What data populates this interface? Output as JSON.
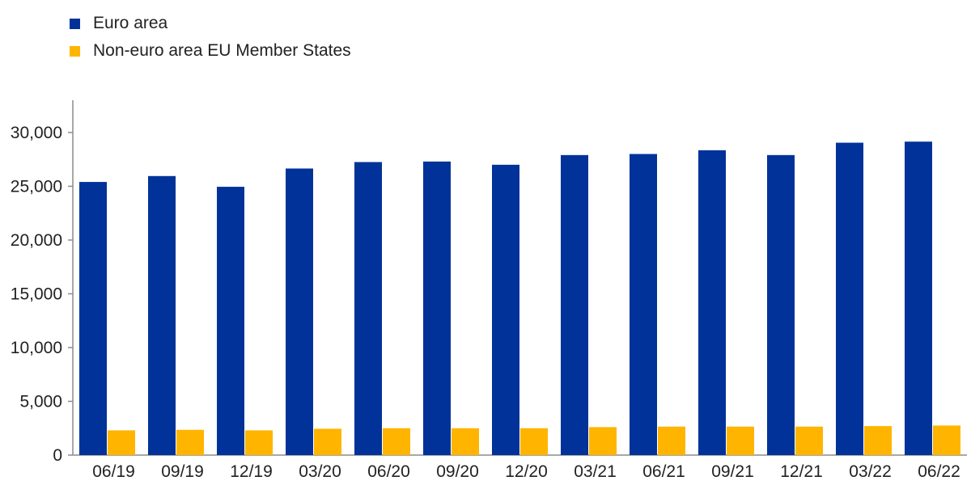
{
  "chart_data": {
    "type": "bar",
    "categories": [
      "06/19",
      "09/19",
      "12/19",
      "03/20",
      "06/20",
      "09/20",
      "12/20",
      "03/21",
      "06/21",
      "09/21",
      "12/21",
      "03/22",
      "06/22"
    ],
    "series": [
      {
        "name": "Euro area",
        "color": "#003299",
        "values": [
          25400,
          25950,
          24950,
          26650,
          27250,
          27300,
          27000,
          27900,
          28000,
          28350,
          27900,
          29050,
          29150
        ]
      },
      {
        "name": "Non-euro area EU Member States",
        "color": "#ffb400",
        "values": [
          2300,
          2350,
          2300,
          2450,
          2500,
          2500,
          2500,
          2600,
          2650,
          2650,
          2650,
          2700,
          2750
        ]
      }
    ],
    "yticks": [
      0,
      5000,
      10000,
      15000,
      20000,
      25000,
      30000
    ],
    "ytick_labels": [
      "0",
      "5,000",
      "10,000",
      "15,000",
      "20,000",
      "25,000",
      "30,000"
    ],
    "ylim": [
      0,
      33000
    ],
    "legend_position": "top-left",
    "grid": false
  }
}
